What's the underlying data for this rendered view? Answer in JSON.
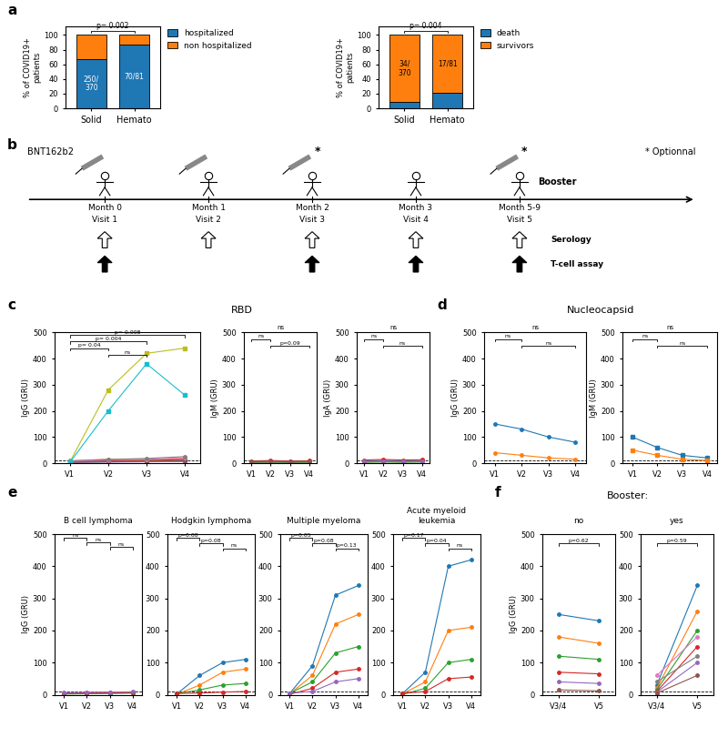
{
  "chart_data": [
    {
      "type": "bar",
      "stacked": true,
      "panel": "a",
      "categories": [
        "Solid",
        "Hemato"
      ],
      "series": [
        {
          "name": "hospitalized",
          "values": [
            67.6,
            86.4
          ],
          "value_labels": [
            "250/\n370",
            "70/81"
          ]
        },
        {
          "name": "non hospitalized",
          "values": [
            32.4,
            13.6
          ]
        }
      ],
      "ylabel": "% of COVID19+\npatients",
      "ylim": [
        0,
        112
      ],
      "yticks": [
        0,
        20,
        40,
        60,
        80,
        100
      ],
      "legend": "upper left",
      "brackets": [
        {
          "from": "Solid",
          "to": "Hemato",
          "y": 103,
          "text": "p= 0.002"
        }
      ]
    },
    {
      "type": "bar",
      "stacked": true,
      "categories": [
        "Solid",
        "Hemato"
      ],
      "series": [
        {
          "name": "death",
          "values": [
            9.2,
            21.0
          ]
        },
        {
          "name": "survivors",
          "values": [
            90.8,
            79.0
          ],
          "value_labels": [
            "34/\n370",
            "17/81"
          ]
        }
      ],
      "ylabel": "% of COVID19+\npatients",
      "ylim": [
        0,
        112
      ],
      "yticks": [
        0,
        20,
        40,
        60,
        80,
        100
      ],
      "legend": "upper left",
      "brackets": [
        {
          "from": "Solid",
          "to": "Hemato",
          "y": 103,
          "text": "p= 0.004"
        }
      ]
    },
    {
      "type": "timeline",
      "panel": "b",
      "title": "BNT162b2",
      "note": "* Optionnal",
      "categories": [
        "Month 0",
        "Month 1",
        "Month 2",
        "Month 3",
        "Month 5-9"
      ],
      "visit_labels": [
        "Visit 1",
        "Visit 2",
        "Visit 3",
        "Visit 4",
        "Visit 5"
      ],
      "vaccination": [
        "Month 0",
        "Month 1",
        "Month 2",
        "Month 5-9"
      ],
      "optional": {
        "mark": "*",
        "categories": [
          "Month 2",
          "Month 5-9"
        ]
      },
      "annotations": [
        {
          "text": "Booster",
          "category": "Month 5-9"
        }
      ],
      "series": [
        {
          "name": "Serology",
          "categories": [
            "Month 0",
            "Month 1",
            "Month 2",
            "Month 3",
            "Month 5-9"
          ]
        },
        {
          "name": "T-cell assay",
          "categories": [
            "Month 0",
            "Month 2",
            "Month 3",
            "Month 5-9"
          ]
        }
      ]
    },
    {
      "type": "line",
      "panel": "c",
      "panel_title": "RBD",
      "categories": [
        "V1",
        "V2",
        "V3",
        "V4"
      ],
      "ylabel": "IgG (GRU)",
      "ylim": [
        0,
        500
      ],
      "yticks": [
        0,
        100,
        200,
        300,
        400,
        500
      ],
      "threshold": 10,
      "brackets": [
        {
          "from": "V1",
          "to": "V4",
          "y": 490,
          "text": "p= 0.008"
        },
        {
          "from": "V1",
          "to": "V3",
          "y": 465,
          "text": "p= 0.004"
        },
        {
          "from": "V1",
          "to": "V2",
          "y": 440,
          "text": "p= 0.04"
        },
        {
          "from": "V2",
          "to": "V3",
          "y": 415,
          "text": "ns"
        }
      ],
      "series": [
        {
          "marker": "circle",
          "values": [
            5,
            10,
            8,
            12
          ]
        },
        {
          "marker": "circle",
          "values": [
            8,
            15,
            12,
            18
          ]
        },
        {
          "marker": "circle",
          "values": [
            3,
            5,
            6,
            8
          ]
        },
        {
          "marker": "circle",
          "values": [
            6,
            8,
            10,
            14
          ]
        },
        {
          "marker": "circle",
          "values": [
            2,
            4,
            5,
            6
          ]
        },
        {
          "marker": "circle",
          "values": [
            4,
            6,
            8,
            10
          ]
        },
        {
          "marker": "circle",
          "values": [
            7,
            12,
            15,
            20
          ]
        },
        {
          "marker": "circle",
          "values": [
            9,
            14,
            18,
            25
          ]
        },
        {
          "marker": "square",
          "values": [
            5,
            280,
            420,
            440
          ]
        },
        {
          "marker": "square",
          "values": [
            3,
            200,
            380,
            260
          ]
        }
      ]
    },
    {
      "type": "line",
      "marker": "circle",
      "categories": [
        "V1",
        "V2",
        "V3",
        "V4"
      ],
      "ylabel": "IgM (GRU)",
      "ylim": [
        0,
        500
      ],
      "yticks": [
        0,
        100,
        200,
        300,
        400,
        500
      ],
      "threshold": 10,
      "annotation": "ns",
      "brackets": [
        {
          "from": "V1",
          "to": "V2",
          "y": 475,
          "text": "ns"
        },
        {
          "from": "V2",
          "to": "V4",
          "y": 450,
          "text": "p=0.09"
        }
      ],
      "series": [
        {
          "values": [
            5,
            8,
            6,
            7
          ]
        },
        {
          "values": [
            3,
            4,
            3,
            4
          ]
        },
        {
          "values": [
            2,
            3,
            2,
            3
          ]
        },
        {
          "values": [
            8,
            10,
            8,
            9
          ]
        },
        {
          "values": [
            4,
            5,
            4,
            5
          ]
        },
        {
          "values": [
            6,
            7,
            6,
            7
          ]
        }
      ]
    },
    {
      "type": "line",
      "marker": "circle",
      "categories": [
        "V1",
        "V2",
        "V3",
        "V4"
      ],
      "ylabel": "IgA (GRU)",
      "ylim": [
        0,
        500
      ],
      "yticks": [
        0,
        100,
        200,
        300,
        400,
        500
      ],
      "threshold": 10,
      "annotation": "ns",
      "brackets": [
        {
          "from": "V1",
          "to": "V2",
          "y": 475,
          "text": "ns"
        },
        {
          "from": "V2",
          "to": "V4",
          "y": 450,
          "text": "ns"
        }
      ],
      "series": [
        {
          "values": [
            8,
            10,
            8,
            9
          ]
        },
        {
          "values": [
            5,
            6,
            5,
            6
          ]
        },
        {
          "values": [
            3,
            4,
            3,
            4
          ]
        },
        {
          "values": [
            12,
            14,
            12,
            13
          ]
        },
        {
          "values": [
            6,
            7,
            6,
            7
          ]
        }
      ]
    },
    {
      "type": "line",
      "marker": "circle",
      "panel": "d",
      "panel_title": "Nucleocapsid",
      "categories": [
        "V1",
        "V2",
        "V3",
        "V4"
      ],
      "ylabel": "IgG (GRU)",
      "ylim": [
        0,
        500
      ],
      "yticks": [
        0,
        100,
        200,
        300,
        400,
        500
      ],
      "threshold": 10,
      "annotation": "ns",
      "brackets": [
        {
          "from": "V1",
          "to": "V2",
          "y": 475,
          "text": "ns"
        },
        {
          "from": "V2",
          "to": "V4",
          "y": 450,
          "text": "ns"
        }
      ],
      "series": [
        {
          "values": [
            150,
            130,
            100,
            80
          ]
        },
        {
          "values": [
            40,
            30,
            20,
            15
          ]
        }
      ]
    },
    {
      "type": "line",
      "marker": "square",
      "categories": [
        "V1",
        "V2",
        "V3",
        "V4"
      ],
      "ylabel": "IgM (GRU)",
      "ylim": [
        0,
        500
      ],
      "yticks": [
        0,
        100,
        200,
        300,
        400,
        500
      ],
      "threshold": 10,
      "annotation": "ns",
      "brackets": [
        {
          "from": "V1",
          "to": "V2",
          "y": 475,
          "text": "ns"
        },
        {
          "from": "V2",
          "to": "V4",
          "y": 450,
          "text": "ns"
        }
      ],
      "series": [
        {
          "values": [
            100,
            60,
            30,
            20
          ]
        },
        {
          "values": [
            50,
            30,
            15,
            10
          ]
        }
      ]
    },
    {
      "type": "line",
      "marker": "circle",
      "panel": "e",
      "title": "B cell lymphoma",
      "categories": [
        "V1",
        "V2",
        "V3",
        "V4"
      ],
      "ylabel": "IgG (GRU)",
      "ylim": [
        0,
        500
      ],
      "yticks": [
        0,
        100,
        200,
        300,
        400,
        500
      ],
      "threshold": 10,
      "brackets": [
        {
          "from": "V1",
          "to": "V2",
          "y": 488,
          "text": "ns"
        },
        {
          "from": "V2",
          "to": "V3",
          "y": 475,
          "text": "ns"
        },
        {
          "from": "V3",
          "to": "V4",
          "y": 460,
          "text": "ns"
        }
      ],
      "series": [
        {
          "values": [
            3,
            4,
            5,
            6
          ]
        },
        {
          "values": [
            5,
            6,
            7,
            8
          ]
        },
        {
          "values": [
            2,
            3,
            4,
            5
          ]
        },
        {
          "values": [
            4,
            5,
            6,
            7
          ]
        },
        {
          "values": [
            6,
            7,
            8,
            9
          ]
        }
      ]
    },
    {
      "type": "line",
      "marker": "circle",
      "title": "Hodgkin lymphoma",
      "categories": [
        "V1",
        "V2",
        "V3",
        "V4"
      ],
      "ylim": [
        0,
        500
      ],
      "yticks": [
        0,
        100,
        200,
        300,
        400,
        500
      ],
      "threshold": 10,
      "brackets": [
        {
          "from": "V1",
          "to": "V2",
          "y": 488,
          "text": "p=0.08"
        },
        {
          "from": "V2",
          "to": "V3",
          "y": 472,
          "text": "p=0.08"
        },
        {
          "from": "V3",
          "to": "V4",
          "y": 456,
          "text": "ns"
        }
      ],
      "series": [
        {
          "values": [
            2,
            60,
            100,
            110
          ]
        },
        {
          "values": [
            1,
            30,
            70,
            80
          ]
        },
        {
          "values": [
            3,
            15,
            30,
            35
          ]
        },
        {
          "values": [
            4,
            5,
            8,
            10
          ]
        }
      ]
    },
    {
      "type": "line",
      "marker": "circle",
      "title": "Multiple myeloma",
      "categories": [
        "V1",
        "V2",
        "V3",
        "V4"
      ],
      "ylim": [
        0,
        500
      ],
      "yticks": [
        0,
        100,
        200,
        300,
        400,
        500
      ],
      "threshold": 10,
      "brackets": [
        {
          "from": "V1",
          "to": "V2",
          "y": 488,
          "text": "p=0.05"
        },
        {
          "from": "V2",
          "to": "V3",
          "y": 472,
          "text": "p=0.08"
        },
        {
          "from": "V3",
          "to": "V4",
          "y": 456,
          "text": "p=0.13"
        }
      ],
      "series": [
        {
          "values": [
            3,
            90,
            310,
            340
          ]
        },
        {
          "values": [
            2,
            60,
            220,
            250
          ]
        },
        {
          "values": [
            4,
            40,
            130,
            150
          ]
        },
        {
          "values": [
            1,
            20,
            70,
            80
          ]
        },
        {
          "values": [
            5,
            10,
            40,
            50
          ]
        }
      ]
    },
    {
      "type": "line",
      "marker": "circle",
      "title": "Acute myeloid\nleukemia",
      "categories": [
        "V1",
        "V2",
        "V3",
        "V4"
      ],
      "ylim": [
        0,
        500
      ],
      "yticks": [
        0,
        100,
        200,
        300,
        400,
        500
      ],
      "threshold": 10,
      "brackets": [
        {
          "from": "V1",
          "to": "V2",
          "y": 488,
          "text": "p=0.17"
        },
        {
          "from": "V2",
          "to": "V3",
          "y": 472,
          "text": "p=0.04"
        },
        {
          "from": "V3",
          "to": "V4",
          "y": 456,
          "text": "ns"
        }
      ],
      "series": [
        {
          "values": [
            3,
            70,
            400,
            420
          ]
        },
        {
          "values": [
            2,
            40,
            200,
            210
          ]
        },
        {
          "values": [
            1,
            20,
            100,
            110
          ]
        },
        {
          "values": [
            4,
            10,
            50,
            55
          ]
        }
      ]
    },
    {
      "type": "line",
      "marker": "circle",
      "panel": "f",
      "panel_title": "Booster:",
      "title": "no",
      "categories": [
        "V3/4",
        "V5"
      ],
      "ylabel": "IgG (GRU)",
      "ylim": [
        0,
        500
      ],
      "yticks": [
        0,
        100,
        200,
        300,
        400,
        500
      ],
      "threshold": 10,
      "brackets": [
        {
          "from": "V3/4",
          "to": "V5",
          "y": 472,
          "text": "p=0.62"
        }
      ],
      "series": [
        {
          "values": [
            250,
            230
          ]
        },
        {
          "values": [
            180,
            160
          ]
        },
        {
          "values": [
            120,
            110
          ]
        },
        {
          "values": [
            70,
            65
          ]
        },
        {
          "values": [
            40,
            35
          ]
        },
        {
          "values": [
            15,
            12
          ]
        }
      ]
    },
    {
      "type": "line",
      "marker": "circle",
      "title": "yes",
      "categories": [
        "V3/4",
        "V5"
      ],
      "ylim": [
        0,
        500
      ],
      "yticks": [
        0,
        100,
        200,
        300,
        400,
        500
      ],
      "threshold": 10,
      "brackets": [
        {
          "from": "V3/4",
          "to": "V5",
          "y": 472,
          "text": "p=0.59"
        }
      ],
      "series": [
        {
          "values": [
            30,
            340
          ]
        },
        {
          "values": [
            20,
            260
          ]
        },
        {
          "values": [
            15,
            200
          ]
        },
        {
          "values": [
            10,
            150
          ]
        },
        {
          "values": [
            8,
            100
          ]
        },
        {
          "values": [
            5,
            60
          ]
        },
        {
          "values": [
            60,
            180
          ]
        },
        {
          "values": [
            40,
            120
          ]
        }
      ]
    }
  ]
}
